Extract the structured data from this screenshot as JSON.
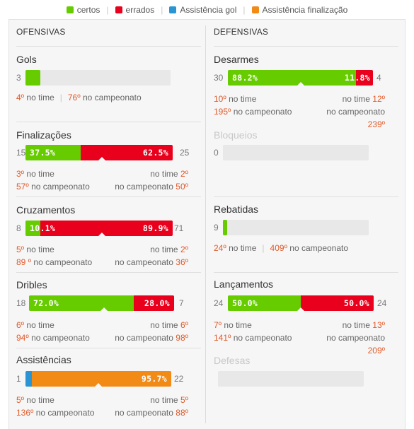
{
  "legend": [
    {
      "label": "certos",
      "color": "#66cc00"
    },
    {
      "label": "errados",
      "color": "#e8001c"
    },
    {
      "label": "Assistência gol",
      "color": "#2b95d4"
    },
    {
      "label": "Assistência finalização",
      "color": "#f28a16"
    }
  ],
  "ofensivas": {
    "heading": "OFENSIVAS",
    "gols": {
      "title": "Gols",
      "left": "3",
      "fill": 0.1,
      "r1_n": "4º",
      "r1_t": " no time",
      "r2_n": "76º",
      "r2_t": " no campeonato"
    },
    "finalizacoes": {
      "title": "Finalizações",
      "left": "15",
      "right": "25",
      "green_pct": "37.5%",
      "red_pct": "62.5%",
      "green": 0.375,
      "l1_n": "3º",
      "l1_t": " no time",
      "l2_n": "57º",
      "l2_t": " no campeonato",
      "r1_t": "no time ",
      "r1_n": "2º",
      "r2_t": "no campeonato ",
      "r2_n": "50º"
    },
    "cruzamentos": {
      "title": "Cruzamentos",
      "left": "8",
      "right": "71",
      "green_pct": "10.1%",
      "red_pct": "89.9%",
      "green": 0.101,
      "l1_n": "5º",
      "l1_t": " no time",
      "l2_n": "89 º",
      "l2_t": " no campeonato",
      "r1_t": "no time ",
      "r1_n": "2º",
      "r2_t": "no campeonato ",
      "r2_n": "36º"
    },
    "dribles": {
      "title": "Dribles",
      "left": "18",
      "right": "7",
      "green_pct": "72.0%",
      "red_pct": "28.0%",
      "green": 0.72,
      "l1_n": "6º",
      "l1_t": " no time",
      "l2_n": "94º",
      "l2_t": " no campeonato",
      "r1_t": "no time ",
      "r1_n": "6º",
      "r2_t": "no campeonato ",
      "r2_n": "98º"
    },
    "assistencias": {
      "title": "Assistências",
      "left": "1",
      "right": "22",
      "orange_pct": "95.7%",
      "blue": 0.043,
      "l1_n": "5º",
      "l1_t": " no time",
      "l2_n": "136º",
      "l2_t": " no campeonato",
      "r1_t": "no time ",
      "r1_n": "5º",
      "r2_t": "no campeonato ",
      "r2_n": "88º"
    }
  },
  "defensivas": {
    "heading": "DEFENSIVAS",
    "desarmes": {
      "title": "Desarmes",
      "left": "30",
      "right": "4",
      "green_pct": "88.2%",
      "red_pct": "11.8%",
      "green": 0.882,
      "l1_n": "10º",
      "l1_t": " no time",
      "l2_n": "195º",
      "l2_t": " no campeonato",
      "r1_t": "no time ",
      "r1_n": "12º",
      "r2_t": "no campeonato",
      "r3_n": "239º"
    },
    "bloqueios": {
      "title": "Bloqueios",
      "left": "0"
    },
    "rebatidas": {
      "title": "Rebatidas",
      "left": "9",
      "fill": 0.03,
      "r1_n": "24º",
      "r1_t": " no time",
      "r2_n": "409º",
      "r2_t": " no campeonato"
    },
    "lancamentos": {
      "title": "Lançamentos",
      "left": "24",
      "right": "24",
      "green_pct": "50.0%",
      "red_pct": "50.0%",
      "green": 0.5,
      "l1_n": "7º",
      "l1_t": " no time",
      "l2_n": "141º",
      "l2_t": " no campeonato",
      "r1_t": "no time ",
      "r1_n": "13º",
      "r2_t": "no campeonato",
      "r3_n": "209º"
    },
    "defesas": {
      "title": "Defesas"
    }
  }
}
